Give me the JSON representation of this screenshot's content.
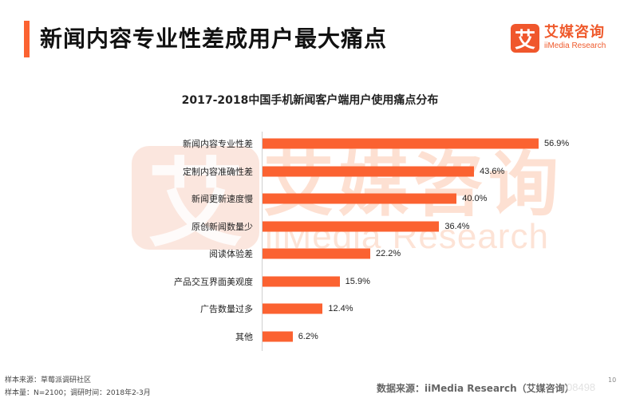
{
  "header": {
    "title": "新闻内容专业性差成用户最大痛点",
    "accent_color": "#fb6231"
  },
  "logo": {
    "glyph": "艾",
    "name_cn": "艾媒咨询",
    "name_en": "iiMedia Research",
    "color": "#ef5a2c"
  },
  "watermark": {
    "glyph": "艾",
    "text_cn": "艾媒咨询",
    "text_en": "iiMedia Research"
  },
  "chart_data": {
    "type": "bar",
    "orientation": "horizontal",
    "title": "2017-2018中国手机新闻客户端用户使用痛点分布",
    "xlabel": "",
    "ylabel": "",
    "categories": [
      "新闻内容专业性差",
      "定制内容准确性差",
      "新闻更新速度慢",
      "原创新闻数量少",
      "阅读体验差",
      "产品交互界面美观度",
      "广告数量过多",
      "其他"
    ],
    "values": [
      56.9,
      43.6,
      40.0,
      36.4,
      22.2,
      15.9,
      12.4,
      6.2
    ],
    "value_labels": [
      "56.9%",
      "43.6%",
      "40.0%",
      "36.4%",
      "22.2%",
      "15.9%",
      "12.4%",
      "6.2%"
    ],
    "unit": "%",
    "bar_color": "#fb6231",
    "grid": false,
    "legend": null
  },
  "footer": {
    "sample_source": "样本来源：草莓派调研社区",
    "sample_size": "样本量：N=2100；调研时间：2018年2-3月",
    "data_source": "数据来源：iiMedia Research（艾媒咨询）",
    "overlay_text": "08498",
    "page_number": "10"
  }
}
